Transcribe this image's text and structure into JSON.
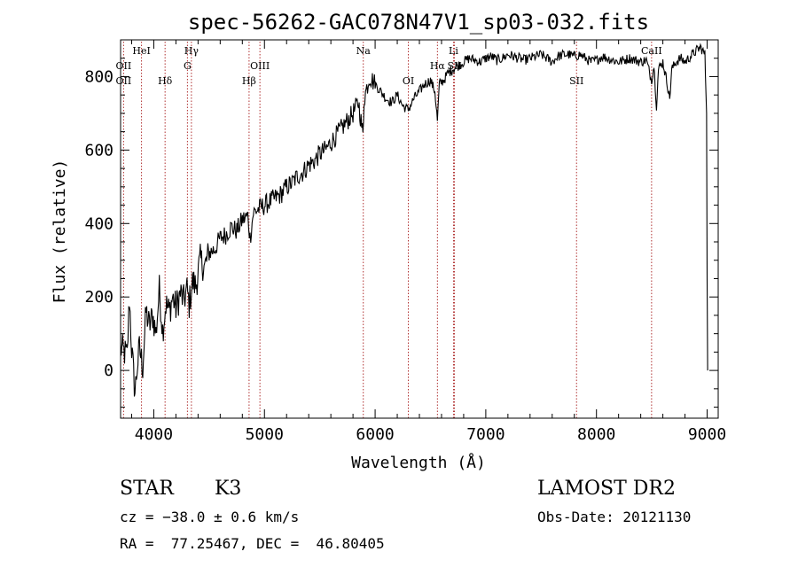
{
  "chart_data": {
    "type": "line",
    "title": "spec-56262-GAC078N47V1_sp03-032.fits",
    "xlabel": "Wavelength (Å)",
    "ylabel": "Flux (relative)",
    "xlim": [
      3700,
      9100
    ],
    "ylim": [
      -130,
      900
    ],
    "x_ticks": [
      4000,
      5000,
      6000,
      7000,
      8000,
      9000
    ],
    "x_tick_labels": [
      "4000",
      "5000",
      "6000",
      "7000",
      "8000",
      "9000"
    ],
    "y_ticks": [
      0,
      200,
      400,
      600,
      800
    ],
    "y_tick_labels": [
      "0",
      "200",
      "400",
      "600",
      "800"
    ],
    "grid": false,
    "series": [
      {
        "color": "#000000",
        "points": [
          [
            3700,
            60
          ],
          [
            3760,
            40
          ],
          [
            3780,
            200
          ],
          [
            3800,
            60
          ],
          [
            3830,
            -60
          ],
          [
            3850,
            10
          ],
          [
            3870,
            60
          ],
          [
            3900,
            10
          ],
          [
            3930,
            160
          ],
          [
            3960,
            120
          ],
          [
            3990,
            150
          ],
          [
            4020,
            100
          ],
          [
            4050,
            220
          ],
          [
            4080,
            110
          ],
          [
            4110,
            180
          ],
          [
            4140,
            160
          ],
          [
            4170,
            200
          ],
          [
            4200,
            170
          ],
          [
            4240,
            210
          ],
          [
            4270,
            190
          ],
          [
            4300,
            220
          ],
          [
            4320,
            180
          ],
          [
            4350,
            240
          ],
          [
            4380,
            230
          ],
          [
            4420,
            300
          ],
          [
            4460,
            280
          ],
          [
            4500,
            320
          ],
          [
            4550,
            330
          ],
          [
            4600,
            360
          ],
          [
            4650,
            370
          ],
          [
            4700,
            390
          ],
          [
            4750,
            380
          ],
          [
            4800,
            410
          ],
          [
            4850,
            420
          ],
          [
            4870,
            360
          ],
          [
            4900,
            430
          ],
          [
            4950,
            440
          ],
          [
            5000,
            450
          ],
          [
            5050,
            460
          ],
          [
            5100,
            470
          ],
          [
            5150,
            480
          ],
          [
            5200,
            500
          ],
          [
            5250,
            510
          ],
          [
            5300,
            530
          ],
          [
            5350,
            540
          ],
          [
            5400,
            560
          ],
          [
            5450,
            570
          ],
          [
            5500,
            590
          ],
          [
            5550,
            600
          ],
          [
            5600,
            620
          ],
          [
            5650,
            640
          ],
          [
            5700,
            660
          ],
          [
            5750,
            680
          ],
          [
            5800,
            700
          ],
          [
            5850,
            730
          ],
          [
            5890,
            640
          ],
          [
            5900,
            740
          ],
          [
            5950,
            800
          ],
          [
            6000,
            780
          ],
          [
            6050,
            760
          ],
          [
            6100,
            740
          ],
          [
            6150,
            730
          ],
          [
            6200,
            750
          ],
          [
            6250,
            720
          ],
          [
            6300,
            710
          ],
          [
            6350,
            740
          ],
          [
            6400,
            760
          ],
          [
            6450,
            780
          ],
          [
            6500,
            790
          ],
          [
            6540,
            760
          ],
          [
            6563,
            680
          ],
          [
            6580,
            780
          ],
          [
            6620,
            790
          ],
          [
            6660,
            810
          ],
          [
            6700,
            820
          ],
          [
            6750,
            830
          ],
          [
            6800,
            840
          ],
          [
            6850,
            850
          ],
          [
            6900,
            845
          ],
          [
            6950,
            840
          ],
          [
            7000,
            850
          ],
          [
            7050,
            855
          ],
          [
            7100,
            845
          ],
          [
            7150,
            850
          ],
          [
            7200,
            860
          ],
          [
            7250,
            855
          ],
          [
            7300,
            850
          ],
          [
            7350,
            845
          ],
          [
            7400,
            850
          ],
          [
            7450,
            855
          ],
          [
            7500,
            860
          ],
          [
            7550,
            850
          ],
          [
            7600,
            840
          ],
          [
            7650,
            855
          ],
          [
            7700,
            860
          ],
          [
            7750,
            860
          ],
          [
            7800,
            855
          ],
          [
            7850,
            860
          ],
          [
            7900,
            850
          ],
          [
            7950,
            840
          ],
          [
            8000,
            845
          ],
          [
            8050,
            855
          ],
          [
            8100,
            850
          ],
          [
            8150,
            845
          ],
          [
            8200,
            840
          ],
          [
            8250,
            845
          ],
          [
            8300,
            850
          ],
          [
            8350,
            845
          ],
          [
            8400,
            840
          ],
          [
            8450,
            845
          ],
          [
            8498,
            790
          ],
          [
            8520,
            830
          ],
          [
            8542,
            720
          ],
          [
            8560,
            820
          ],
          [
            8600,
            840
          ],
          [
            8640,
            780
          ],
          [
            8662,
            740
          ],
          [
            8680,
            820
          ],
          [
            8720,
            840
          ],
          [
            8760,
            850
          ],
          [
            8800,
            840
          ],
          [
            8850,
            855
          ],
          [
            8900,
            870
          ],
          [
            8940,
            880
          ],
          [
            8980,
            860
          ],
          [
            8995,
            700
          ],
          [
            9000,
            250
          ],
          [
            9005,
            0
          ]
        ]
      }
    ],
    "spectral_lines": [
      {
        "label": "OII",
        "x": 3727,
        "row": "bottom"
      },
      {
        "label": "OII",
        "x": 3727,
        "row": "top-alt"
      },
      {
        "label": "HeI",
        "x": 3889,
        "row": "top"
      },
      {
        "label": "Hδ",
        "x": 4102,
        "row": "bottom"
      },
      {
        "label": "Hγ",
        "x": 4340,
        "row": "top"
      },
      {
        "label": "G",
        "x": 4304,
        "row": "mid"
      },
      {
        "label": "Hβ",
        "x": 4861,
        "row": "bottom"
      },
      {
        "label": "OIII",
        "x": 4959,
        "row": "mid"
      },
      {
        "label": "Na",
        "x": 5893,
        "row": "top"
      },
      {
        "label": "OI",
        "x": 6300,
        "row": "bottom"
      },
      {
        "label": "Hα",
        "x": 6563,
        "row": "mid"
      },
      {
        "label": "SII",
        "x": 6717,
        "row": "mid"
      },
      {
        "label": "Li",
        "x": 6708,
        "row": "top"
      },
      {
        "label": "SII",
        "x": 7820,
        "row": "bottom"
      },
      {
        "label": "CaII",
        "x": 8498,
        "row": "top"
      }
    ],
    "line_marker_color": "#b03030"
  },
  "info": {
    "object_type": "STAR",
    "subclass": "K3",
    "survey": "LAMOST DR2",
    "velocity": "cz = −38.0 ± 0.6 km/s",
    "obs_date": "Obs-Date: 20121130",
    "coords": "RA =  77.25467, DEC =  46.80405"
  }
}
